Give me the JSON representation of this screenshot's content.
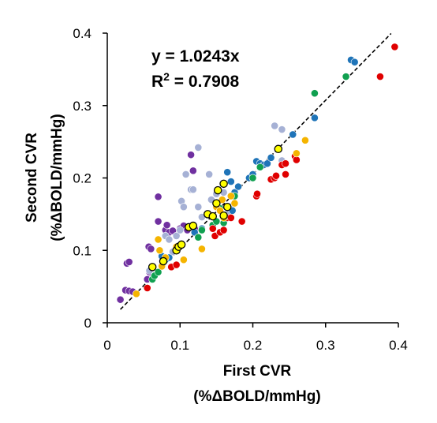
{
  "chart_data": {
    "type": "scatter",
    "title": "",
    "xlabel": "First CVR",
    "xlabel_units": "(%ΔBOLD/mmHg)",
    "ylabel": "Second CVR",
    "ylabel_units": "(%ΔBOLD/mmHg)",
    "xlim": [
      0,
      0.4
    ],
    "ylim": [
      0,
      0.4
    ],
    "x_ticks": [
      "0",
      "0.1",
      "0.2",
      "0.3",
      "0.4"
    ],
    "y_ticks": [
      "0",
      "0.1",
      "0.2",
      "0.3",
      "0.4"
    ],
    "grid": false,
    "legend": "none",
    "annotations": {
      "equation": "y = 1.0243x",
      "r2_prefix": "R",
      "r2_sup": "2",
      "r2_rest": " = 0.7908"
    },
    "trendline": {
      "slope": 1.0243,
      "intercept": 0,
      "x_range": [
        0.018,
        0.39
      ],
      "style": "dashed",
      "color": "#000000"
    },
    "series": [
      {
        "color": "#7030a0",
        "points": [
          [
            0.018,
            0.032
          ],
          [
            0.025,
            0.045
          ],
          [
            0.027,
            0.082
          ],
          [
            0.03,
            0.084
          ],
          [
            0.03,
            0.044
          ],
          [
            0.035,
            0.043
          ],
          [
            0.055,
            0.06
          ],
          [
            0.057,
            0.105
          ],
          [
            0.06,
            0.102
          ],
          [
            0.058,
            0.07
          ],
          [
            0.07,
            0.174
          ],
          [
            0.07,
            0.14
          ],
          [
            0.08,
            0.128
          ],
          [
            0.082,
            0.135
          ],
          [
            0.085,
            0.125
          ],
          [
            0.09,
            0.127
          ],
          [
            0.1,
            0.13
          ],
          [
            0.105,
            0.134
          ],
          [
            0.115,
            0.232
          ],
          [
            0.118,
            0.21
          ],
          [
            0.12,
            0.125
          ],
          [
            0.12,
            0.13
          ],
          [
            0.11,
            0.128
          ]
        ]
      },
      {
        "color": "#a6b1d5",
        "points": [
          [
            0.058,
            0.072
          ],
          [
            0.065,
            0.065
          ],
          [
            0.08,
            0.12
          ],
          [
            0.085,
            0.115
          ],
          [
            0.09,
            0.098
          ],
          [
            0.095,
            0.12
          ],
          [
            0.1,
            0.128
          ],
          [
            0.102,
            0.168
          ],
          [
            0.105,
            0.16
          ],
          [
            0.108,
            0.205
          ],
          [
            0.115,
            0.184
          ],
          [
            0.118,
            0.184
          ],
          [
            0.125,
            0.16
          ],
          [
            0.125,
            0.242
          ],
          [
            0.13,
            0.146
          ],
          [
            0.14,
            0.205
          ],
          [
            0.143,
            0.17
          ],
          [
            0.15,
            0.178
          ],
          [
            0.16,
            0.18
          ],
          [
            0.165,
            0.15
          ],
          [
            0.17,
            0.16
          ],
          [
            0.175,
            0.175
          ],
          [
            0.23,
            0.272
          ],
          [
            0.24,
            0.267
          ],
          [
            0.24,
            0.224
          ]
        ]
      },
      {
        "color": "#1f74b8",
        "points": [
          [
            0.075,
            0.092
          ],
          [
            0.08,
            0.087
          ],
          [
            0.085,
            0.09
          ],
          [
            0.12,
            0.125
          ],
          [
            0.13,
            0.13
          ],
          [
            0.165,
            0.208
          ],
          [
            0.17,
            0.195
          ],
          [
            0.172,
            0.155
          ],
          [
            0.175,
            0.18
          ],
          [
            0.18,
            0.188
          ],
          [
            0.195,
            0.2
          ],
          [
            0.2,
            0.205
          ],
          [
            0.205,
            0.223
          ],
          [
            0.21,
            0.22
          ],
          [
            0.215,
            0.218
          ],
          [
            0.22,
            0.22
          ],
          [
            0.225,
            0.228
          ],
          [
            0.255,
            0.26
          ],
          [
            0.285,
            0.283
          ],
          [
            0.335,
            0.363
          ],
          [
            0.34,
            0.36
          ]
        ]
      },
      {
        "color": "#10a050",
        "points": [
          [
            0.062,
            0.06
          ],
          [
            0.065,
            0.065
          ],
          [
            0.07,
            0.07
          ],
          [
            0.125,
            0.118
          ],
          [
            0.13,
            0.128
          ],
          [
            0.145,
            0.135
          ],
          [
            0.15,
            0.14
          ],
          [
            0.155,
            0.158
          ],
          [
            0.16,
            0.138
          ],
          [
            0.175,
            0.175
          ],
          [
            0.2,
            0.2
          ],
          [
            0.21,
            0.215
          ],
          [
            0.285,
            0.317
          ],
          [
            0.328,
            0.34
          ]
        ]
      },
      {
        "color": "#e00000",
        "points": [
          [
            0.055,
            0.048
          ],
          [
            0.088,
            0.077
          ],
          [
            0.095,
            0.08
          ],
          [
            0.145,
            0.13
          ],
          [
            0.148,
            0.12
          ],
          [
            0.155,
            0.125
          ],
          [
            0.16,
            0.128
          ],
          [
            0.165,
            0.145
          ],
          [
            0.17,
            0.145
          ],
          [
            0.185,
            0.14
          ],
          [
            0.205,
            0.175
          ],
          [
            0.206,
            0.178
          ],
          [
            0.225,
            0.198
          ],
          [
            0.23,
            0.2
          ],
          [
            0.232,
            0.203
          ],
          [
            0.24,
            0.218
          ],
          [
            0.245,
            0.22
          ],
          [
            0.245,
            0.205
          ],
          [
            0.258,
            0.23
          ],
          [
            0.26,
            0.225
          ],
          [
            0.375,
            0.34
          ],
          [
            0.395,
            0.381
          ]
        ]
      },
      {
        "color": "#f5b400",
        "points": [
          [
            0.04,
            0.04
          ],
          [
            0.07,
            0.115
          ],
          [
            0.072,
            0.1
          ],
          [
            0.075,
            0.078
          ],
          [
            0.08,
            0.09
          ],
          [
            0.095,
            0.105
          ],
          [
            0.105,
            0.087
          ],
          [
            0.13,
            0.102
          ],
          [
            0.15,
            0.16
          ],
          [
            0.155,
            0.155
          ],
          [
            0.158,
            0.17
          ],
          [
            0.16,
            0.145
          ],
          [
            0.17,
            0.175
          ],
          [
            0.175,
            0.165
          ],
          [
            0.26,
            0.234
          ],
          [
            0.272,
            0.252
          ]
        ]
      },
      {
        "color": "#ffff00",
        "outline": "#000000",
        "points": [
          [
            0.062,
            0.077
          ],
          [
            0.077,
            0.085
          ],
          [
            0.095,
            0.1
          ],
          [
            0.098,
            0.105
          ],
          [
            0.102,
            0.108
          ],
          [
            0.112,
            0.132
          ],
          [
            0.118,
            0.134
          ],
          [
            0.138,
            0.15
          ],
          [
            0.145,
            0.147
          ],
          [
            0.15,
            0.165
          ],
          [
            0.152,
            0.183
          ],
          [
            0.16,
            0.192
          ],
          [
            0.16,
            0.148
          ],
          [
            0.165,
            0.16
          ],
          [
            0.235,
            0.24
          ]
        ]
      }
    ]
  }
}
